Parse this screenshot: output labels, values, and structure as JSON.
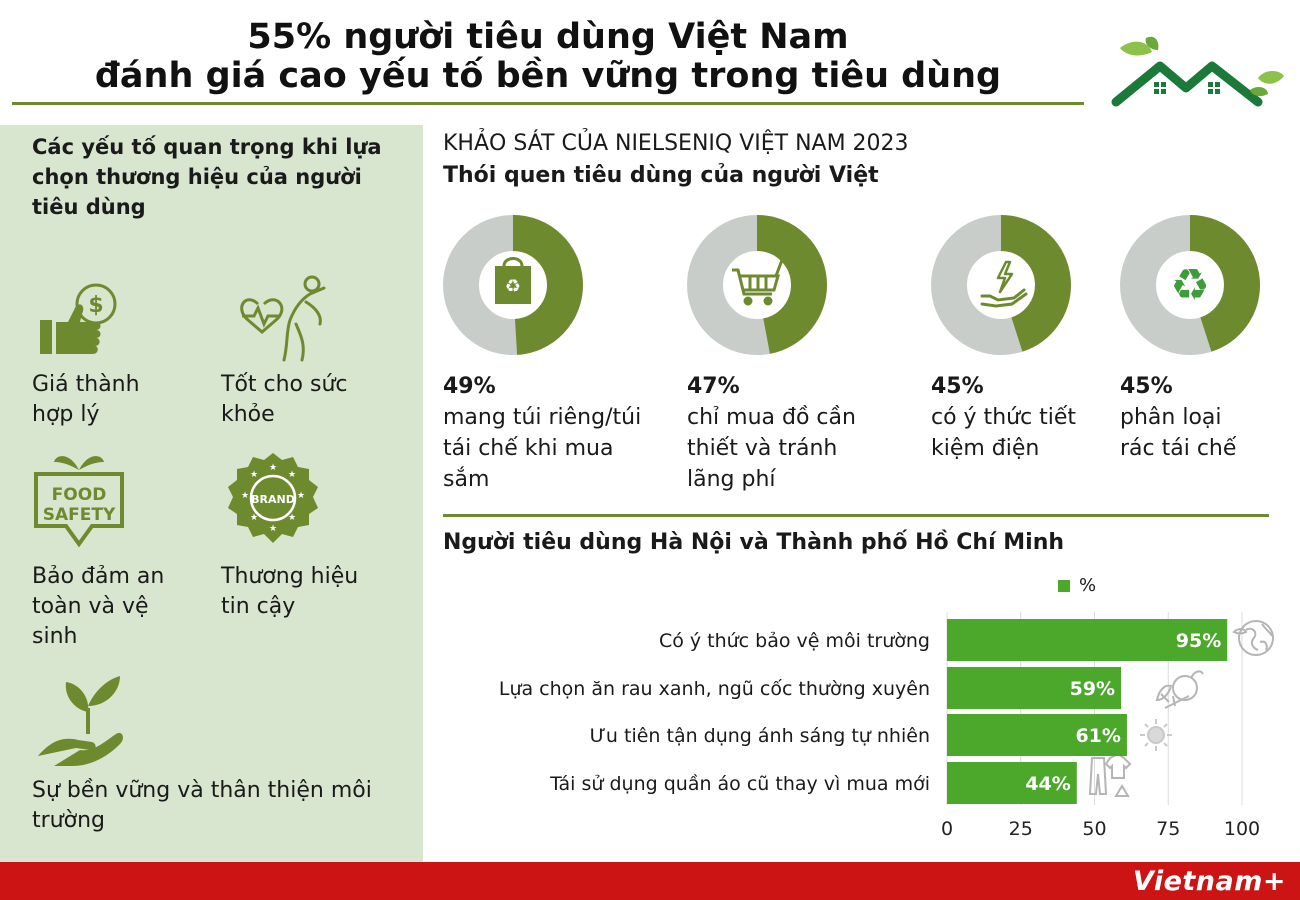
{
  "header": {
    "title_line1": "55% người tiêu dùng Việt Nam",
    "title_line2": "đánh giá cao yếu tố bền vững trong tiêu dùng"
  },
  "left_panel": {
    "heading": "Các yếu tố quan trọng khi lựa chọn thương hiệu của người tiêu dùng",
    "factors": [
      {
        "label": "Giá thành hợp lý",
        "icon": "thumbs-up-dollar-icon"
      },
      {
        "label": "Tốt cho sức khỏe",
        "icon": "healthy-person-icon"
      },
      {
        "label": "Bảo đảm an toàn và vệ sinh",
        "icon": "food-safety-badge-icon"
      },
      {
        "label": "Thương hiệu tin cậy",
        "icon": "brand-seal-icon"
      },
      {
        "label": "Sự bền vững và thân thiện môi trường",
        "icon": "plant-in-hand-icon"
      }
    ],
    "food_badge_line1": "FOOD",
    "food_badge_line2": "SAFETY",
    "brand_badge": "BRAND"
  },
  "survey": {
    "source": "KHẢO SÁT CỦA NIELSENIQ VIỆT NAM 2023",
    "subtitle": "Thói quen tiêu dùng của người Việt"
  },
  "habits": [
    {
      "value": "49%",
      "percent": 49,
      "desc": "mang túi riêng/túi tái chế khi mua sắm",
      "icon": "recycle-bag-icon"
    },
    {
      "value": "47%",
      "percent": 47,
      "desc": "chỉ mua đồ cần thiết và tránh lãng phí",
      "icon": "shopping-cart-icon"
    },
    {
      "value": "45%",
      "percent": 45,
      "desc": "có ý thức tiết kiệm điện",
      "icon": "energy-hand-icon"
    },
    {
      "value": "45%",
      "percent": 45,
      "desc": "phân loại rác tái chế",
      "icon": "recycle-icon"
    }
  ],
  "chart_data": {
    "type": "bar",
    "orientation": "horizontal",
    "title": "Người tiêu dùng Hà Nội và Thành phố Hồ Chí Minh",
    "categories": [
      "Có ý thức bảo vệ môi trường",
      "Lựa chọn ăn rau xanh, ngũ cốc thường xuyên",
      "Ưu tiên tận dụng ánh sáng tự nhiên",
      "Tái sử dụng quần áo cũ thay vì mua mới"
    ],
    "series": [
      {
        "name": "%",
        "values": [
          95,
          59,
          61,
          44
        ]
      }
    ],
    "data_labels": [
      "95%",
      "59%",
      "61%",
      "44%"
    ],
    "xlim": [
      0,
      100
    ],
    "x_ticks": [
      0,
      25,
      50,
      75,
      100
    ],
    "grid": "vertical",
    "legend": "top-right"
  },
  "colors": {
    "olive": "#6e8a2e",
    "bar_green": "#4ba82a",
    "donut_grey": "#c9cdca",
    "panel_bg": "#d8e5cf",
    "footer_red": "#cc1414",
    "logo_green": "#1b7a3a"
  },
  "footer": {
    "brand": "Vietnam+"
  }
}
